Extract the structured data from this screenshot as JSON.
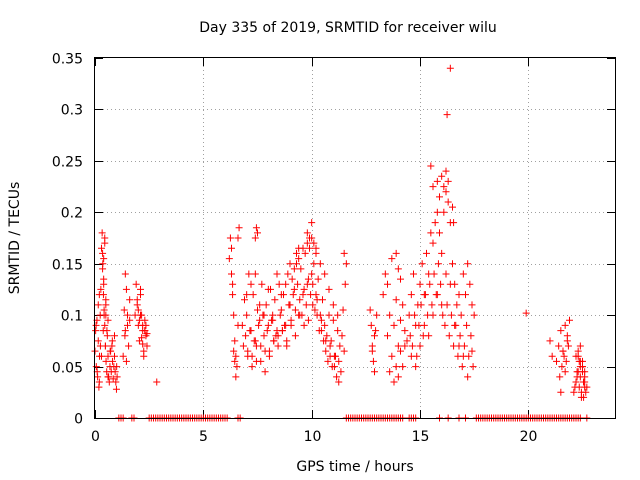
{
  "chart_data": {
    "type": "scatter",
    "title": "Day 335 of 2019, SRMTID for receiver wilu",
    "xlabel": "GPS time / hours",
    "ylabel": "SRMTID / TECUs",
    "xlim": [
      0,
      24
    ],
    "ylim": [
      0,
      0.35
    ],
    "xticks": [
      0,
      5,
      10,
      15,
      20
    ],
    "xtick_labels": [
      "0",
      "5",
      "10",
      "15",
      "20"
    ],
    "yticks": [
      0,
      0.05,
      0.1,
      0.15,
      0.2,
      0.25,
      0.3,
      0.35
    ],
    "ytick_labels": [
      "0",
      "0.05",
      "0.1",
      "0.15",
      "0.2",
      "0.25",
      "0.3",
      "0.35"
    ],
    "grid": true,
    "marker": "+",
    "series": [
      {
        "name": "SRMTID",
        "color": "#ff0000",
        "x": [
          0.0,
          0.03,
          0.06,
          0.09,
          0.12,
          0.15,
          0.18,
          0.21,
          0.24,
          0.27,
          0.3,
          0.33,
          0.36,
          0.39,
          0.42,
          0.45,
          0.48,
          0.51,
          0.54,
          0.57,
          0.6,
          0.63,
          0.66,
          0.69,
          0.72,
          0.75,
          0.78,
          0.81,
          0.84,
          0.87,
          0.9,
          0.93,
          0.96,
          0.99,
          1.02,
          0.05,
          0.1,
          0.15,
          0.2,
          0.25,
          0.35,
          0.4,
          0.45,
          0.5,
          0.55,
          0.6,
          0.7,
          0.8,
          0.9,
          1.0,
          0.2,
          0.3,
          0.4,
          0.5,
          0.6,
          0.35,
          0.4,
          0.45,
          0.5,
          0.38,
          0.42,
          0.48,
          1.3,
          1.35,
          1.4,
          1.45,
          1.5,
          1.55,
          1.6,
          1.4,
          1.5,
          1.6,
          1.45,
          1.38,
          1.85,
          1.9,
          1.95,
          2.0,
          2.05,
          2.1,
          2.15,
          2.2,
          2.25,
          2.3,
          2.35,
          2.4,
          2.0,
          2.1,
          2.2,
          2.3,
          1.95,
          2.05,
          2.15,
          2.25,
          2.35,
          2.1,
          2.2,
          2.3,
          2.4,
          2.85,
          6.2,
          6.25,
          6.3,
          6.35,
          6.4,
          6.45,
          6.5,
          6.55,
          6.6,
          6.3,
          6.4,
          6.5,
          6.35,
          6.45,
          6.8,
          6.9,
          7.0,
          7.1,
          7.2,
          7.3,
          7.4,
          7.5,
          7.6,
          7.7,
          7.8,
          7.9,
          8.0,
          8.1,
          8.2,
          8.3,
          8.4,
          8.5,
          8.6,
          8.7,
          8.8,
          8.9,
          9.0,
          9.1,
          9.2,
          9.3,
          9.4,
          9.5,
          9.6,
          9.7,
          9.8,
          9.9,
          10.0,
          10.1,
          10.2,
          10.3,
          10.4,
          10.5,
          10.6,
          10.7,
          10.8,
          10.9,
          11.0,
          11.1,
          11.2,
          11.3,
          11.4,
          11.5,
          6.85,
          6.95,
          7.05,
          7.15,
          7.25,
          7.35,
          7.45,
          7.55,
          7.65,
          7.75,
          7.85,
          7.95,
          8.05,
          8.15,
          8.25,
          8.35,
          8.45,
          8.55,
          8.65,
          8.75,
          8.85,
          8.95,
          9.05,
          9.15,
          9.25,
          9.35,
          9.45,
          9.55,
          9.65,
          9.75,
          9.85,
          9.95,
          10.05,
          10.15,
          10.25,
          10.35,
          10.45,
          10.55,
          10.65,
          10.75,
          10.85,
          10.95,
          11.05,
          11.15,
          11.25,
          11.35,
          7.0,
          7.2,
          7.4,
          7.6,
          7.8,
          8.0,
          8.2,
          8.4,
          8.6,
          8.8,
          9.0,
          9.2,
          9.4,
          9.6,
          9.8,
          10.0,
          10.2,
          10.4,
          10.6,
          10.8,
          11.0,
          11.2,
          7.05,
          7.25,
          7.45,
          7.65,
          7.85,
          8.05,
          8.25,
          8.45,
          8.65,
          8.85,
          9.05,
          9.25,
          9.45,
          9.65,
          9.85,
          10.05,
          10.25,
          10.45,
          10.65,
          10.85,
          11.05,
          11.25,
          6.6,
          6.65,
          7.4,
          7.5,
          7.45,
          9.3,
          9.4,
          9.8,
          10.0,
          9.9,
          10.1,
          10.2,
          11.5,
          11.55,
          11.6,
          11.45,
          12.7,
          12.75,
          12.8,
          12.85,
          12.9,
          12.95,
          13.0,
          12.8,
          12.9,
          13.3,
          13.4,
          13.5,
          13.6,
          13.7,
          13.8,
          13.9,
          14.0,
          14.1,
          14.2,
          14.3,
          14.4,
          13.5,
          13.7,
          13.9,
          14.1,
          14.3,
          13.6,
          13.8,
          14.0,
          14.2,
          13.9,
          14.0,
          14.1,
          14.5,
          14.6,
          14.7,
          14.8,
          14.9,
          15.0,
          15.1,
          15.2,
          15.3,
          15.4,
          15.5,
          15.6,
          15.7,
          15.8,
          15.9,
          16.0,
          16.1,
          16.2,
          16.3,
          16.4,
          16.5,
          16.6,
          16.7,
          16.8,
          16.9,
          17.0,
          17.1,
          17.2,
          17.3,
          17.4,
          17.5,
          14.55,
          14.65,
          14.75,
          14.85,
          14.95,
          15.05,
          15.15,
          15.25,
          15.35,
          15.45,
          15.55,
          15.65,
          15.75,
          15.85,
          15.95,
          16.05,
          16.15,
          16.25,
          16.35,
          16.45,
          16.55,
          16.65,
          16.75,
          16.85,
          16.95,
          17.05,
          17.15,
          17.25,
          17.35,
          17.45,
          14.6,
          14.8,
          15.0,
          15.2,
          15.4,
          15.6,
          15.8,
          16.0,
          16.2,
          16.4,
          16.6,
          16.8,
          17.0,
          17.2,
          17.4,
          15.5,
          15.6,
          15.8,
          15.9,
          16.0,
          16.1,
          16.2,
          16.3,
          16.25,
          16.4,
          16.5,
          16.55,
          19.9,
          21.0,
          21.1,
          21.3,
          21.4,
          21.5,
          21.6,
          21.7,
          21.8,
          21.9,
          21.45,
          21.55,
          21.65,
          21.75,
          21.85,
          21.5,
          21.6,
          21.7,
          21.8,
          22.1,
          22.15,
          22.2,
          22.25,
          22.3,
          22.35,
          22.4,
          22.45,
          22.5,
          22.55,
          22.6,
          22.65,
          22.7,
          22.2,
          22.3,
          22.4,
          22.5,
          22.6,
          22.25,
          22.35,
          22.45,
          22.55,
          22.3,
          22.4,
          22.5,
          22.6,
          22.4,
          22.5,
          22.55,
          22.6,
          1.1,
          1.2,
          1.3,
          1.7,
          1.8,
          2.5,
          2.6,
          2.7,
          2.8,
          2.9,
          3.0,
          3.1,
          3.2,
          3.3,
          3.4,
          3.5,
          3.6,
          3.7,
          3.8,
          3.9,
          4.0,
          4.1,
          4.2,
          4.3,
          4.4,
          4.5,
          4.6,
          4.7,
          4.8,
          4.9,
          5.0,
          5.1,
          5.2,
          5.3,
          5.4,
          5.5,
          5.6,
          5.7,
          5.8,
          5.9,
          6.0,
          6.1,
          6.6,
          6.7,
          11.6,
          11.7,
          11.8,
          11.9,
          12.0,
          12.1,
          12.2,
          12.3,
          12.4,
          12.5,
          12.6,
          12.7,
          12.8,
          12.9,
          13.0,
          13.1,
          13.2,
          13.3,
          13.4,
          13.5,
          13.6,
          13.7,
          13.8,
          13.9,
          14.0,
          14.1,
          14.2,
          14.5,
          14.6,
          14.7,
          14.8,
          15.9,
          16.3,
          16.8,
          17.1,
          17.6,
          17.7,
          17.8,
          17.9,
          18.0,
          18.1,
          18.2,
          18.3,
          18.4,
          18.5,
          18.6,
          18.7,
          18.8,
          18.9,
          19.0,
          19.1,
          19.2,
          19.3,
          19.4,
          19.5,
          19.6,
          19.7,
          19.8,
          19.9,
          20.0,
          20.1,
          20.2,
          20.3,
          20.4,
          20.5,
          20.6,
          20.7,
          20.8,
          20.9,
          21.0,
          21.1,
          21.2,
          21.3,
          21.4,
          21.5,
          21.6,
          21.7,
          21.8,
          21.9,
          22.0,
          22.1,
          22.2,
          22.3,
          22.4,
          22.7
        ],
        "y": [
          0.065,
          0.085,
          0.05,
          0.095,
          0.04,
          0.075,
          0.03,
          0.06,
          0.1,
          0.125,
          0.165,
          0.18,
          0.15,
          0.12,
          0.105,
          0.09,
          0.07,
          0.055,
          0.045,
          0.08,
          0.06,
          0.04,
          0.035,
          0.05,
          0.065,
          0.045,
          0.07,
          0.055,
          0.038,
          0.05,
          0.06,
          0.045,
          0.035,
          0.028,
          0.04,
          0.09,
          0.045,
          0.11,
          0.035,
          0.07,
          0.145,
          0.13,
          0.175,
          0.1,
          0.085,
          0.095,
          0.065,
          0.075,
          0.08,
          0.05,
          0.12,
          0.06,
          0.155,
          0.11,
          0.04,
          0.16,
          0.135,
          0.17,
          0.115,
          0.085,
          0.1,
          0.07,
          0.06,
          0.105,
          0.085,
          0.125,
          0.1,
          0.07,
          0.095,
          0.14,
          0.09,
          0.115,
          0.055,
          0.08,
          0.1,
          0.13,
          0.115,
          0.09,
          0.075,
          0.125,
          0.1,
          0.085,
          0.065,
          0.095,
          0.08,
          0.07,
          0.105,
          0.12,
          0.09,
          0.085,
          0.11,
          0.095,
          0.078,
          0.06,
          0.09,
          0.1,
          0.072,
          0.085,
          0.082,
          0.035,
          0.155,
          0.175,
          0.14,
          0.12,
          0.1,
          0.075,
          0.06,
          0.05,
          0.09,
          0.165,
          0.065,
          0.04,
          0.13,
          0.055,
          0.09,
          0.115,
          0.1,
          0.14,
          0.085,
          0.12,
          0.075,
          0.105,
          0.095,
          0.13,
          0.08,
          0.11,
          0.09,
          0.125,
          0.1,
          0.115,
          0.085,
          0.13,
          0.105,
          0.12,
          0.09,
          0.14,
          0.11,
          0.135,
          0.125,
          0.15,
          0.1,
          0.145,
          0.12,
          0.16,
          0.13,
          0.165,
          0.14,
          0.15,
          0.12,
          0.135,
          0.1,
          0.115,
          0.09,
          0.08,
          0.1,
          0.075,
          0.095,
          0.06,
          0.085,
          0.07,
          0.08,
          0.065,
          0.07,
          0.08,
          0.065,
          0.085,
          0.06,
          0.075,
          0.055,
          0.09,
          0.07,
          0.1,
          0.065,
          0.085,
          0.06,
          0.095,
          0.075,
          0.08,
          0.07,
          0.1,
          0.085,
          0.09,
          0.075,
          0.11,
          0.095,
          0.12,
          0.105,
          0.13,
          0.115,
          0.1,
          0.125,
          0.11,
          0.135,
          0.12,
          0.13,
          0.105,
          0.115,
          0.085,
          0.095,
          0.075,
          0.065,
          0.055,
          0.07,
          0.05,
          0.06,
          0.04,
          0.055,
          0.045,
          0.12,
          0.13,
          0.14,
          0.11,
          0.1,
          0.125,
          0.095,
          0.14,
          0.12,
          0.13,
          0.15,
          0.145,
          0.155,
          0.165,
          0.17,
          0.175,
          0.16,
          0.15,
          0.14,
          0.125,
          0.11,
          0.1,
          0.06,
          0.05,
          0.07,
          0.055,
          0.045,
          0.065,
          0.075,
          0.08,
          0.085,
          0.07,
          0.09,
          0.08,
          0.1,
          0.09,
          0.095,
          0.11,
          0.1,
          0.085,
          0.075,
          0.06,
          0.05,
          0.035,
          0.175,
          0.185,
          0.175,
          0.18,
          0.185,
          0.16,
          0.165,
          0.18,
          0.19,
          0.175,
          0.17,
          0.165,
          0.16,
          0.13,
          0.15,
          0.105,
          0.105,
          0.09,
          0.07,
          0.055,
          0.045,
          0.085,
          0.1,
          0.065,
          0.08,
          0.12,
          0.14,
          0.08,
          0.1,
          0.06,
          0.09,
          0.05,
          0.07,
          0.065,
          0.11,
          0.085,
          0.075,
          0.13,
          0.155,
          0.115,
          0.095,
          0.07,
          0.045,
          0.035,
          0.04,
          0.05,
          0.16,
          0.145,
          0.135,
          0.1,
          0.12,
          0.14,
          0.09,
          0.11,
          0.13,
          0.15,
          0.12,
          0.16,
          0.14,
          0.18,
          0.17,
          0.19,
          0.2,
          0.18,
          0.16,
          0.2,
          0.22,
          0.21,
          0.19,
          0.15,
          0.13,
          0.11,
          0.12,
          0.1,
          0.14,
          0.12,
          0.15,
          0.13,
          0.11,
          0.1,
          0.08,
          0.07,
          0.1,
          0.06,
          0.09,
          0.11,
          0.08,
          0.12,
          0.1,
          0.13,
          0.11,
          0.14,
          0.12,
          0.15,
          0.13,
          0.1,
          0.09,
          0.11,
          0.08,
          0.1,
          0.07,
          0.09,
          0.06,
          0.08,
          0.05,
          0.07,
          0.09,
          0.06,
          0.08,
          0.05,
          0.06,
          0.05,
          0.07,
          0.09,
          0.08,
          0.1,
          0.12,
          0.11,
          0.14,
          0.13,
          0.09,
          0.07,
          0.06,
          0.04,
          0.065,
          0.245,
          0.225,
          0.23,
          0.215,
          0.235,
          0.225,
          0.24,
          0.23,
          0.295,
          0.34,
          0.205,
          0.19,
          0.102,
          0.075,
          0.06,
          0.055,
          0.07,
          0.085,
          0.065,
          0.09,
          0.08,
          0.095,
          0.04,
          0.05,
          0.06,
          0.055,
          0.07,
          0.025,
          0.065,
          0.045,
          0.075,
          0.025,
          0.03,
          0.035,
          0.04,
          0.045,
          0.03,
          0.05,
          0.02,
          0.055,
          0.035,
          0.045,
          0.025,
          0.03,
          0.06,
          0.065,
          0.07,
          0.05,
          0.04,
          0.045,
          0.055,
          0.025,
          0.035,
          0.06,
          0.04,
          0.05,
          0.03,
          0.055,
          0.045,
          0.02,
          0.035,
          0,
          0,
          0,
          0,
          0,
          0,
          0,
          0,
          0,
          0,
          0,
          0,
          0,
          0,
          0,
          0,
          0,
          0,
          0,
          0,
          0,
          0,
          0,
          0,
          0,
          0,
          0,
          0,
          0,
          0,
          0,
          0,
          0,
          0,
          0,
          0,
          0,
          0,
          0,
          0,
          0,
          0,
          0,
          0,
          0,
          0,
          0,
          0,
          0,
          0,
          0,
          0,
          0,
          0,
          0,
          0,
          0,
          0,
          0,
          0,
          0,
          0,
          0,
          0,
          0,
          0,
          0,
          0,
          0,
          0,
          0,
          0,
          0,
          0,
          0,
          0,
          0,
          0,
          0,
          0,
          0,
          0,
          0,
          0,
          0,
          0,
          0,
          0,
          0,
          0,
          0,
          0,
          0,
          0,
          0,
          0,
          0,
          0,
          0,
          0,
          0,
          0,
          0,
          0,
          0,
          0,
          0,
          0,
          0,
          0,
          0,
          0,
          0,
          0,
          0,
          0,
          0,
          0,
          0,
          0,
          0,
          0,
          0,
          0,
          0,
          0,
          0,
          0,
          0
        ]
      }
    ]
  }
}
